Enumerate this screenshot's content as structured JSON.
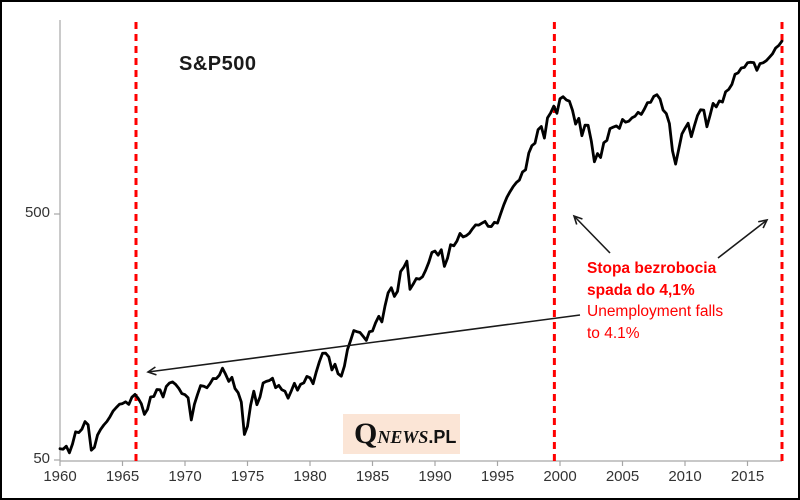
{
  "title": "S&P500",
  "annotation": {
    "pl_line1": "Stopa bezrobocia",
    "pl_line2": "spada do 4,1%",
    "en_line1": "Unemployment falls",
    "en_line2": "to 4.1%"
  },
  "logo": {
    "q": "Q",
    "news": "NEWS",
    "pl": ".PL"
  },
  "colors": {
    "series_line": "#000000",
    "event_line": "#ff0000",
    "annotation_text": "#ff0000",
    "axis": "#a6a6a6",
    "tick_label": "#333333",
    "logo_background": "#fbe5d6"
  },
  "chart_data": {
    "type": "line",
    "title": "S&P500",
    "series_name": "S&P500",
    "xlabel": "",
    "ylabel": "",
    "y_scale": "log",
    "y_ticks": [
      50,
      500
    ],
    "ylim": [
      47,
      3000
    ],
    "xlim": [
      1960,
      2017.8
    ],
    "x_ticks": [
      1960,
      1965,
      1970,
      1975,
      1980,
      1985,
      1990,
      1995,
      2000,
      2005,
      2010,
      2015
    ],
    "x_start": 1960.0,
    "x_step": 0.25,
    "grid": false,
    "legend": "none",
    "event_lines": {
      "years": [
        1966.08,
        1999.55,
        2017.76
      ],
      "meaning": "Unemployment falls to 4.1% / Stopa bezrobocia spada do 4,1%"
    },
    "values": [
      55.6,
      55.3,
      56.9,
      53.5,
      58.1,
      65.1,
      64.6,
      66.7,
      71.6,
      69.6,
      54.8,
      56.3,
      63.1,
      66.6,
      69.4,
      71.7,
      75.0,
      79.0,
      81.7,
      84.2,
      84.8,
      86.2,
      84.1,
      90.0,
      92.4,
      89.2,
      84.7,
      76.6,
      80.3,
      90.2,
      90.6,
      96.7,
      96.5,
      90.2,
      99.6,
      102.7,
      103.9,
      101.5,
      97.7,
      93.1,
      92.1,
      89.6,
      72.7,
      84.2,
      92.2,
      100.3,
      99.7,
      98.3,
      102.1,
      107.2,
      107.1,
      110.6,
      118.1,
      111.5,
      104.3,
      108.4,
      97.6,
      94.0,
      86.0,
      63.5,
      68.6,
      83.4,
      95.2,
      83.9,
      90.2,
      102.8,
      104.3,
      105.2,
      107.5,
      98.4,
      100.5,
      96.5,
      95.1,
      89.2,
      95.5,
      102.5,
      96.1,
      101.6,
      102.9,
      109.3,
      107.9,
      102.1,
      114.2,
      125.5,
      135.8,
      136.0,
      131.2,
      116.2,
      122.6,
      112.0,
      109.6,
      120.4,
      140.6,
      153.0,
      168.1,
      166.1,
      164.9,
      159.2,
      153.2,
      166.1,
      167.2,
      180.7,
      191.9,
      182.1,
      211.3,
      238.9,
      250.8,
      231.3,
      242.2,
      291.7,
      304.0,
      321.8,
      247.1,
      258.9,
      273.5,
      271.9,
      277.7,
      294.9,
      318.0,
      349.2,
      353.4,
      339.9,
      358.0,
      306.1,
      330.2,
      375.2,
      371.2,
      387.9,
      417.1,
      403.7,
      408.1,
      417.8,
      435.7,
      451.7,
      450.5,
      458.9,
      466.5,
      445.8,
      444.3,
      462.7,
      459.3,
      500.7,
      544.8,
      584.4,
      615.9,
      645.5,
      670.6,
      687.3,
      740.7,
      757.1,
      885.1,
      947.3,
      970.4,
      1101.8,
      1133.8,
      1017.0,
      1229.2,
      1286.4,
      1372.7,
      1282.7,
      1469.3,
      1498.6,
      1454.6,
      1436.5,
      1320.3,
      1160.3,
      1224.4,
      1040.9,
      1148.1,
      1147.4,
      989.8,
      815.3,
      879.8,
      848.2,
      974.5,
      996.0,
      1111.9,
      1126.2,
      1140.8,
      1114.6,
      1211.9,
      1180.6,
      1191.3,
      1228.8,
      1248.3,
      1294.9,
      1270.2,
      1335.9,
      1418.3,
      1420.9,
      1503.3,
      1526.8,
      1468.4,
      1322.7,
      1280.0,
      1166.4,
      903.3,
      797.9,
      919.3,
      1057.1,
      1115.1,
      1169.4,
      1030.7,
      1141.2,
      1257.6,
      1325.8,
      1320.6,
      1131.4,
      1257.6,
      1408.5,
      1362.2,
      1440.7,
      1426.2,
      1569.2,
      1606.3,
      1681.6,
      1848.4,
      1872.3,
      1960.2,
      1972.3,
      2058.9,
      2067.9,
      2063.1,
      1920.0,
      2043.9,
      2059.7,
      2098.9,
      2168.3,
      2238.8,
      2362.7,
      2423.4,
      2519.4
    ]
  }
}
